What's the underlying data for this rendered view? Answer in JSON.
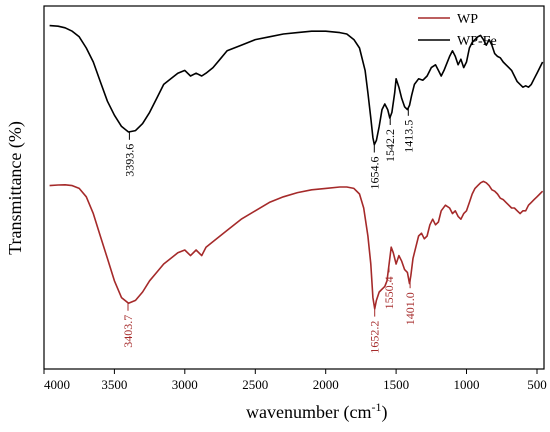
{
  "chart_data": {
    "type": "line",
    "title": "",
    "xlabel": "wavenumber (cm",
    "xlabel_sup": "-1",
    "xlabel_close": ")",
    "ylabel": "Transmittance (%)",
    "xlim": [
      4000,
      450
    ],
    "x_reversed": true,
    "y_ticks_shown": false,
    "x_ticks": [
      4000,
      3500,
      3000,
      2500,
      2000,
      1500,
      1000,
      500
    ],
    "x_tick_labels": [
      "4000",
      "3500",
      "3000",
      "2500",
      "2000",
      "1500",
      "1000",
      "500"
    ],
    "legend": {
      "placement": "top-right",
      "entries": [
        {
          "name": "WP",
          "color": "#a52a2a"
        },
        {
          "name": "WP-Fe",
          "color": "#000000"
        }
      ]
    },
    "series": [
      {
        "name": "WP-Fe",
        "color": "#000000",
        "level": "upper",
        "x": [
          3960,
          3900,
          3850,
          3800,
          3750,
          3700,
          3650,
          3600,
          3550,
          3500,
          3450,
          3400,
          3350,
          3300,
          3250,
          3200,
          3150,
          3100,
          3050,
          3000,
          2960,
          2920,
          2880,
          2850,
          2800,
          2750,
          2700,
          2600,
          2500,
          2400,
          2300,
          2200,
          2100,
          2000,
          1900,
          1850,
          1800,
          1760,
          1720,
          1700,
          1680,
          1665,
          1655,
          1640,
          1620,
          1600,
          1580,
          1560,
          1545,
          1530,
          1510,
          1500,
          1480,
          1460,
          1440,
          1420,
          1405,
          1390,
          1370,
          1340,
          1310,
          1280,
          1250,
          1220,
          1200,
          1180,
          1160,
          1120,
          1100,
          1080,
          1060,
          1040,
          1020,
          1000,
          980,
          960,
          940,
          920,
          900,
          880,
          860,
          840,
          820,
          800,
          780,
          760,
          740,
          720,
          700,
          680,
          660,
          640,
          620,
          600,
          580,
          560,
          540,
          520,
          500,
          480,
          460
        ],
        "y": [
          98,
          97.8,
          97.2,
          96,
          94,
          90,
          85,
          78,
          71,
          66,
          62,
          60,
          60.5,
          63,
          67,
          72,
          77,
          79,
          81,
          82,
          80,
          81,
          80,
          81,
          83,
          86,
          89,
          91,
          93,
          94,
          95,
          95.5,
          96,
          96,
          95.5,
          95,
          93,
          90,
          82,
          74,
          65,
          58,
          55.5,
          57,
          62,
          68,
          70,
          68,
          65,
          67,
          74,
          79,
          76,
          72,
          69,
          68,
          69.5,
          73,
          77,
          79,
          78.5,
          80,
          83,
          84,
          82,
          80,
          82,
          87,
          89,
          87,
          84,
          86,
          83,
          85,
          90,
          92,
          93,
          94,
          94.5,
          93,
          91,
          93,
          91,
          88,
          87,
          86.5,
          85,
          84,
          83,
          82,
          80,
          78,
          77,
          76,
          76.5,
          76,
          77,
          79,
          81,
          83,
          85
        ]
      },
      {
        "name": "WP",
        "color": "#a52a2a",
        "level": "lower",
        "x": [
          3960,
          3900,
          3850,
          3800,
          3750,
          3700,
          3650,
          3600,
          3550,
          3500,
          3450,
          3400,
          3350,
          3300,
          3250,
          3200,
          3150,
          3100,
          3050,
          3000,
          2960,
          2920,
          2880,
          2850,
          2800,
          2700,
          2600,
          2500,
          2400,
          2300,
          2200,
          2100,
          2000,
          1900,
          1850,
          1800,
          1760,
          1730,
          1700,
          1680,
          1665,
          1652,
          1640,
          1620,
          1600,
          1580,
          1565,
          1550,
          1535,
          1520,
          1500,
          1480,
          1460,
          1440,
          1420,
          1405,
          1395,
          1380,
          1360,
          1340,
          1320,
          1300,
          1280,
          1260,
          1240,
          1220,
          1200,
          1180,
          1150,
          1120,
          1100,
          1080,
          1060,
          1040,
          1020,
          1000,
          980,
          960,
          940,
          920,
          900,
          880,
          860,
          840,
          820,
          800,
          780,
          760,
          740,
          720,
          700,
          680,
          660,
          640,
          620,
          600,
          580,
          560,
          540,
          520,
          500,
          480,
          460
        ],
        "y": [
          98,
          98.2,
          98.3,
          98,
          97,
          94,
          88,
          80,
          72,
          64,
          58,
          56,
          57,
          60,
          64,
          67,
          70,
          72,
          74,
          75,
          73,
          75,
          73,
          76,
          78,
          82,
          86,
          89,
          92,
          94,
          95.5,
          96.5,
          97,
          97.5,
          97.5,
          97,
          95,
          90,
          80,
          70,
          58,
          54,
          57,
          60,
          61,
          62,
          64,
          70,
          76,
          74,
          70,
          73,
          71,
          68,
          67,
          63,
          66,
          72,
          76,
          80,
          81,
          79,
          80,
          84,
          86,
          84,
          85,
          89,
          91,
          90,
          88,
          89,
          87,
          86,
          88,
          89,
          92,
          95,
          97,
          98,
          99,
          99.5,
          99,
          98,
          96.5,
          96,
          95,
          93.5,
          93,
          92,
          91,
          90,
          90,
          89,
          88,
          89,
          89,
          91,
          92,
          93,
          94,
          95,
          96
        ]
      }
    ],
    "annotations": [
      {
        "text": "3393.6",
        "x": 3393.6,
        "series": "WP-Fe",
        "color": "#000000",
        "rotated": true
      },
      {
        "text": "1654.6",
        "x": 1654.6,
        "series": "WP-Fe",
        "color": "#000000",
        "rotated": true
      },
      {
        "text": "1542.2",
        "x": 1542.2,
        "series": "WP-Fe",
        "color": "#000000",
        "rotated": true
      },
      {
        "text": "1413.5",
        "x": 1413.5,
        "series": "WP-Fe",
        "color": "#000000",
        "rotated": true
      },
      {
        "text": "3403.7",
        "x": 3403.7,
        "series": "WP",
        "color": "#a52a2a",
        "rotated": true
      },
      {
        "text": "1652.2",
        "x": 1652.2,
        "series": "WP",
        "color": "#a52a2a",
        "rotated": true
      },
      {
        "text": "1550.4",
        "x": 1550.4,
        "series": "WP",
        "color": "#a52a2a",
        "rotated": true
      },
      {
        "text": "1401.0",
        "x": 1401.0,
        "series": "WP",
        "color": "#a52a2a",
        "rotated": true
      }
    ]
  }
}
